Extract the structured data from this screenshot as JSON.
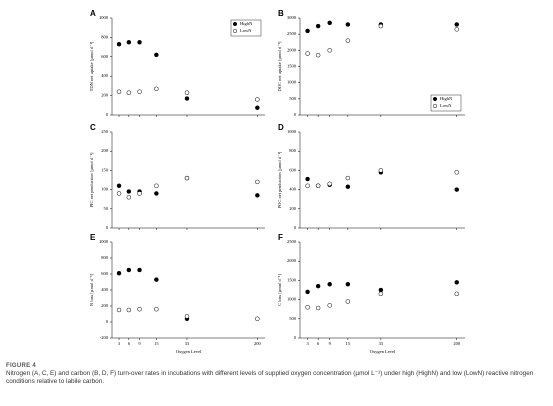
{
  "figure_label": "FIGURE 4",
  "caption": "Nitrogen (A, C, E) and carbon (B, D, F) turn-over rates in incubations with different levels of supplied oxygen concentration (µmol L⁻¹) under high (HighN) and low (LowN) reactive nitrogen conditions relative to labile carbon.",
  "chart_data": [
    {
      "type": "scatter",
      "label": "A",
      "ylabel": "TDN net uptake [µmol d⁻¹]",
      "categories": [
        null,
        null,
        null,
        null,
        null,
        null
      ],
      "ylim": [
        0,
        1000
      ],
      "yticks": [
        0,
        200,
        400,
        600,
        800,
        1000
      ],
      "legend": "upper right",
      "series": [
        {
          "name": "HighN",
          "color": "#000000",
          "values": [
            730,
            750,
            750,
            620,
            170,
            75
          ]
        },
        {
          "name": "LowN",
          "color": "#ffffff",
          "values": [
            240,
            230,
            240,
            270,
            230,
            160
          ]
        }
      ]
    },
    {
      "type": "scatter",
      "label": "B",
      "ylabel": "DOC net uptake [µmol d⁻¹]",
      "categories": [
        null,
        null,
        null,
        null,
        null,
        null
      ],
      "ylim": [
        0,
        3000
      ],
      "yticks": [
        0,
        500,
        1000,
        1500,
        2000,
        2500,
        3000
      ],
      "legend": "lower right",
      "series": [
        {
          "name": "HighN",
          "color": "#000000",
          "values": [
            2600,
            2750,
            2850,
            2800,
            2800,
            2800
          ]
        },
        {
          "name": "LowN",
          "color": "#ffffff",
          "values": [
            1900,
            1850,
            2000,
            2300,
            2750,
            2650
          ]
        }
      ]
    },
    {
      "type": "scatter",
      "label": "C",
      "ylabel": "PIC net production [µmol d⁻¹]",
      "categories": [
        null,
        null,
        null,
        null,
        null,
        null
      ],
      "ylim": [
        0,
        250
      ],
      "yticks": [
        0,
        50,
        100,
        150,
        200,
        250
      ],
      "series": [
        {
          "name": "HighN",
          "color": "#000000",
          "values": [
            110,
            95,
            95,
            90,
            130,
            85
          ]
        },
        {
          "name": "LowN",
          "color": "#ffffff",
          "values": [
            90,
            80,
            90,
            110,
            130,
            120
          ]
        }
      ]
    },
    {
      "type": "scatter",
      "label": "D",
      "ylabel": "POC net production [µmol d⁻¹]",
      "categories": [
        null,
        null,
        null,
        null,
        null,
        null
      ],
      "ylim": [
        0,
        1000
      ],
      "yticks": [
        0,
        200,
        400,
        600,
        800,
        1000
      ],
      "series": [
        {
          "name": "HighN",
          "color": "#000000",
          "values": [
            510,
            440,
            450,
            430,
            580,
            400
          ]
        },
        {
          "name": "LowN",
          "color": "#ffffff",
          "values": [
            440,
            440,
            460,
            520,
            600,
            580
          ]
        }
      ]
    },
    {
      "type": "scatter",
      "label": "E",
      "ylabel": "N loss [µmol d⁻¹]",
      "xlabel": "Oxygen Level",
      "categories": [
        "3",
        "6",
        "9",
        "15",
        "33",
        "200"
      ],
      "ylim": [
        -200,
        1000
      ],
      "yticks": [
        -200,
        0,
        200,
        400,
        600,
        800,
        1000
      ],
      "series": [
        {
          "name": "HighN",
          "color": "#000000",
          "values": [
            610,
            650,
            650,
            530,
            40,
            null
          ]
        },
        {
          "name": "LowN",
          "color": "#ffffff",
          "values": [
            150,
            150,
            160,
            160,
            70,
            40
          ]
        }
      ]
    },
    {
      "type": "scatter",
      "label": "F",
      "ylabel": "C loss [µmol d⁻¹]",
      "xlabel": "Oxygen Level",
      "categories": [
        "3",
        "6",
        "9",
        "15",
        "33",
        "200"
      ],
      "ylim": [
        0,
        2500
      ],
      "yticks": [
        0,
        500,
        1000,
        1500,
        2000,
        2500
      ],
      "series": [
        {
          "name": "HighN",
          "color": "#000000",
          "values": [
            1200,
            1350,
            1400,
            1400,
            1250,
            1450
          ]
        },
        {
          "name": "LowN",
          "color": "#ffffff",
          "values": [
            800,
            780,
            850,
            950,
            1150,
            1150
          ]
        }
      ]
    }
  ]
}
